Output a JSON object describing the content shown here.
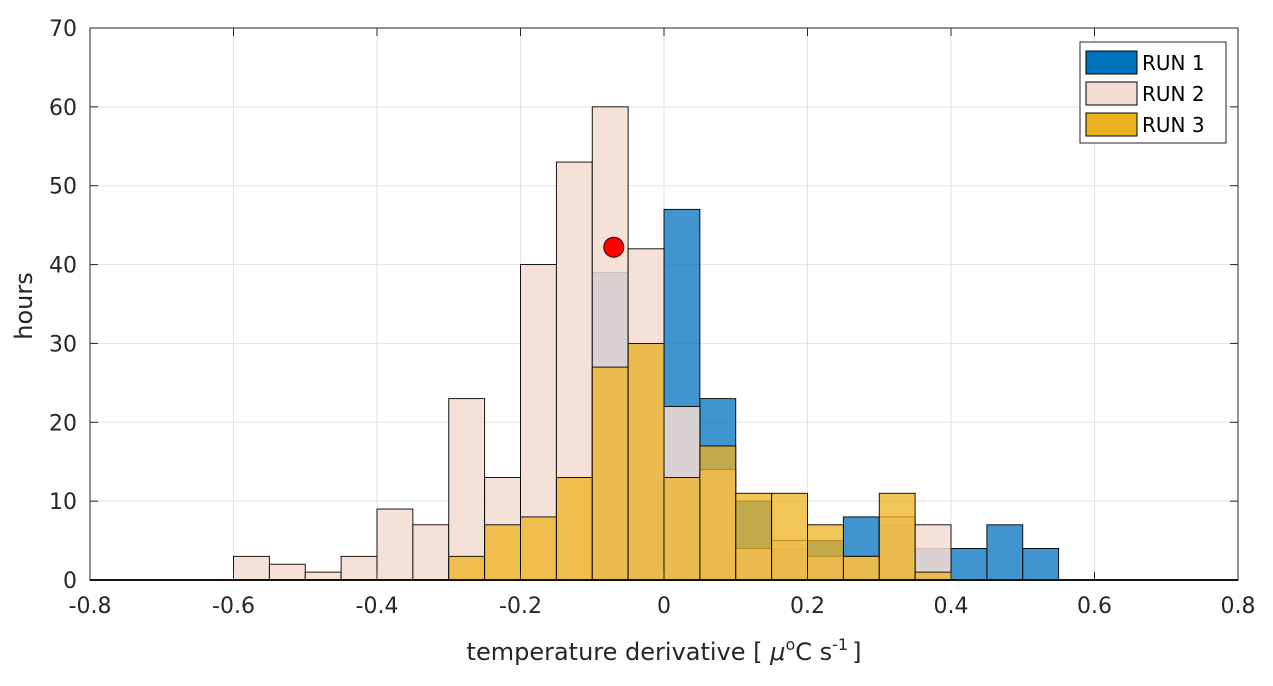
{
  "chart_data": {
    "type": "bar",
    "subtype": "overlaid-histogram",
    "xlabel_prefix": "temperature derivative [ ",
    "xlabel_mu": "μ",
    "xlabel_deg": "o",
    "xlabel_unit": "C s",
    "xlabel_exp": "-1",
    "xlabel_suffix": "]",
    "ylabel": "hours",
    "xlim": [
      -0.8,
      0.8
    ],
    "ylim": [
      0,
      70
    ],
    "xticks": [
      -0.8,
      -0.6,
      -0.4,
      -0.2,
      0,
      0.2,
      0.4,
      0.6,
      0.8
    ],
    "xtick_labels": [
      "-0.8",
      "-0.6",
      "-0.4",
      "-0.2",
      "0",
      "0.2",
      "0.4",
      "0.6",
      "0.8"
    ],
    "yticks": [
      0,
      10,
      20,
      30,
      40,
      50,
      60,
      70
    ],
    "ytick_labels": [
      "0",
      "10",
      "20",
      "30",
      "40",
      "50",
      "60",
      "70"
    ],
    "grid": true,
    "legend_position": "top-right",
    "bin_width": 0.05,
    "bin_edges_start": -0.8,
    "series": [
      {
        "name": "RUN 1",
        "color": "#0072BD",
        "values": [
          0,
          0,
          0,
          0,
          0,
          0,
          0,
          0,
          0,
          0,
          0,
          0,
          0,
          0,
          39,
          30,
          47,
          23,
          10,
          4,
          5,
          8,
          7,
          4,
          4,
          7,
          4,
          0,
          0,
          0,
          0,
          0
        ]
      },
      {
        "name": "RUN 2",
        "color": "#F5DCD2",
        "values": [
          0,
          0,
          0,
          0,
          3,
          2,
          1,
          3,
          9,
          7,
          23,
          13,
          40,
          53,
          60,
          42,
          22,
          14,
          4,
          5,
          3,
          3,
          8,
          7,
          0,
          0,
          0,
          0,
          0,
          0,
          0,
          0
        ]
      },
      {
        "name": "RUN 3",
        "color": "#EDB120",
        "values": [
          0,
          0,
          0,
          0,
          0,
          0,
          0,
          0,
          0,
          0,
          3,
          7,
          8,
          13,
          27,
          30,
          13,
          17,
          11,
          11,
          7,
          3,
          11,
          1,
          0,
          0,
          0,
          0,
          0,
          0,
          0,
          0
        ]
      }
    ],
    "annotations": [
      {
        "type": "marker",
        "shape": "circle",
        "x": -0.07,
        "y": 42.2,
        "color": "#FF0000"
      }
    ]
  }
}
